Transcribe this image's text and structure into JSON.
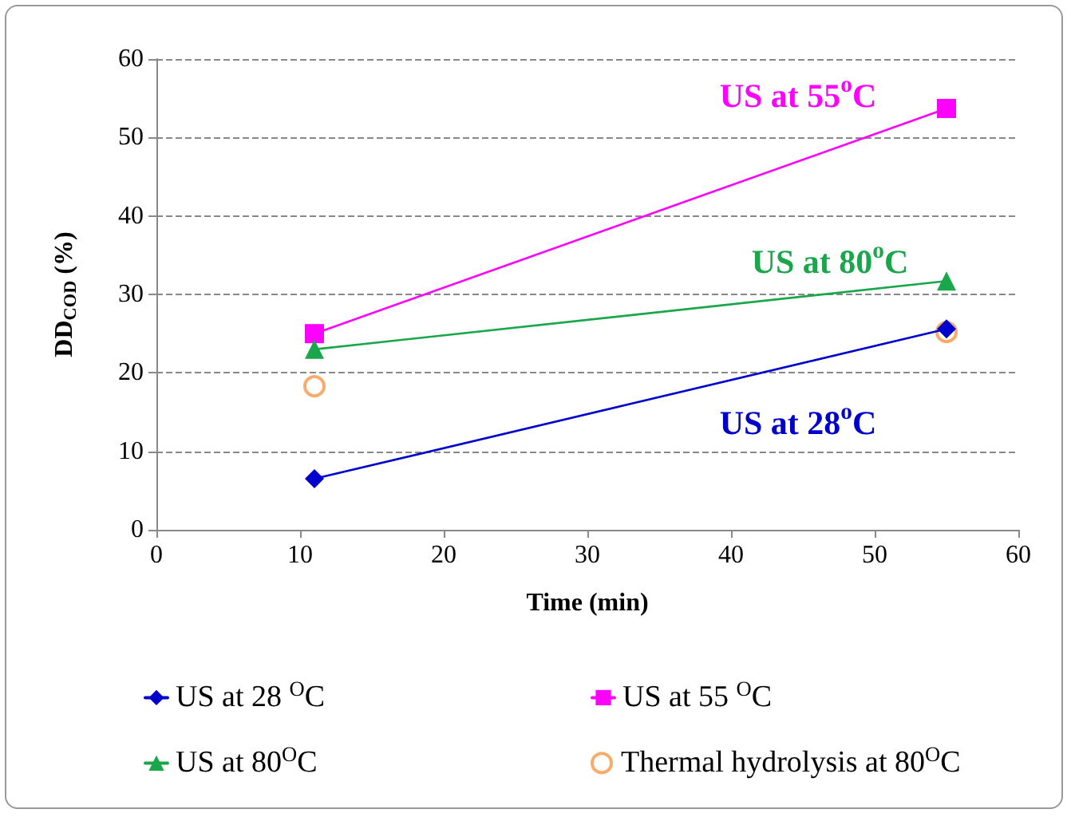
{
  "chart_data": {
    "type": "line",
    "xlabel": "Time (min)",
    "ylabel": "DD$_{COD}$ (%)",
    "x": [
      11,
      55
    ],
    "xlim": [
      0,
      60
    ],
    "xticks": [
      0,
      10,
      20,
      30,
      40,
      50,
      60
    ],
    "ylim": [
      0,
      60
    ],
    "yticks": [
      0,
      10,
      20,
      30,
      40,
      50,
      60
    ],
    "grid": "y",
    "legend": "bottom",
    "line_style": "solid",
    "series": [
      {
        "name": "US at 28 $^{O}$C",
        "color": "#0000cc",
        "marker": "diamond",
        "values": [
          6.5,
          25.6
        ]
      },
      {
        "name": "US at 55 $^{O}$C",
        "color": "#ff00ff",
        "marker": "square",
        "values": [
          25,
          53.7
        ]
      },
      {
        "name": "US at 80$^{O}$C",
        "color": "#1aa64a",
        "marker": "triangle",
        "values": [
          23,
          31.7
        ]
      },
      {
        "name": "Thermal hydrolysis at 80$^{O}$C",
        "type": "scatter",
        "color": "#f79646",
        "marker": "circle",
        "values": [
          18.3,
          25.2
        ]
      }
    ],
    "annotations": [
      "US at 28$^{o}$C",
      "US at 55$^{o}$C",
      "US at 80$^{o}$C"
    ]
  }
}
